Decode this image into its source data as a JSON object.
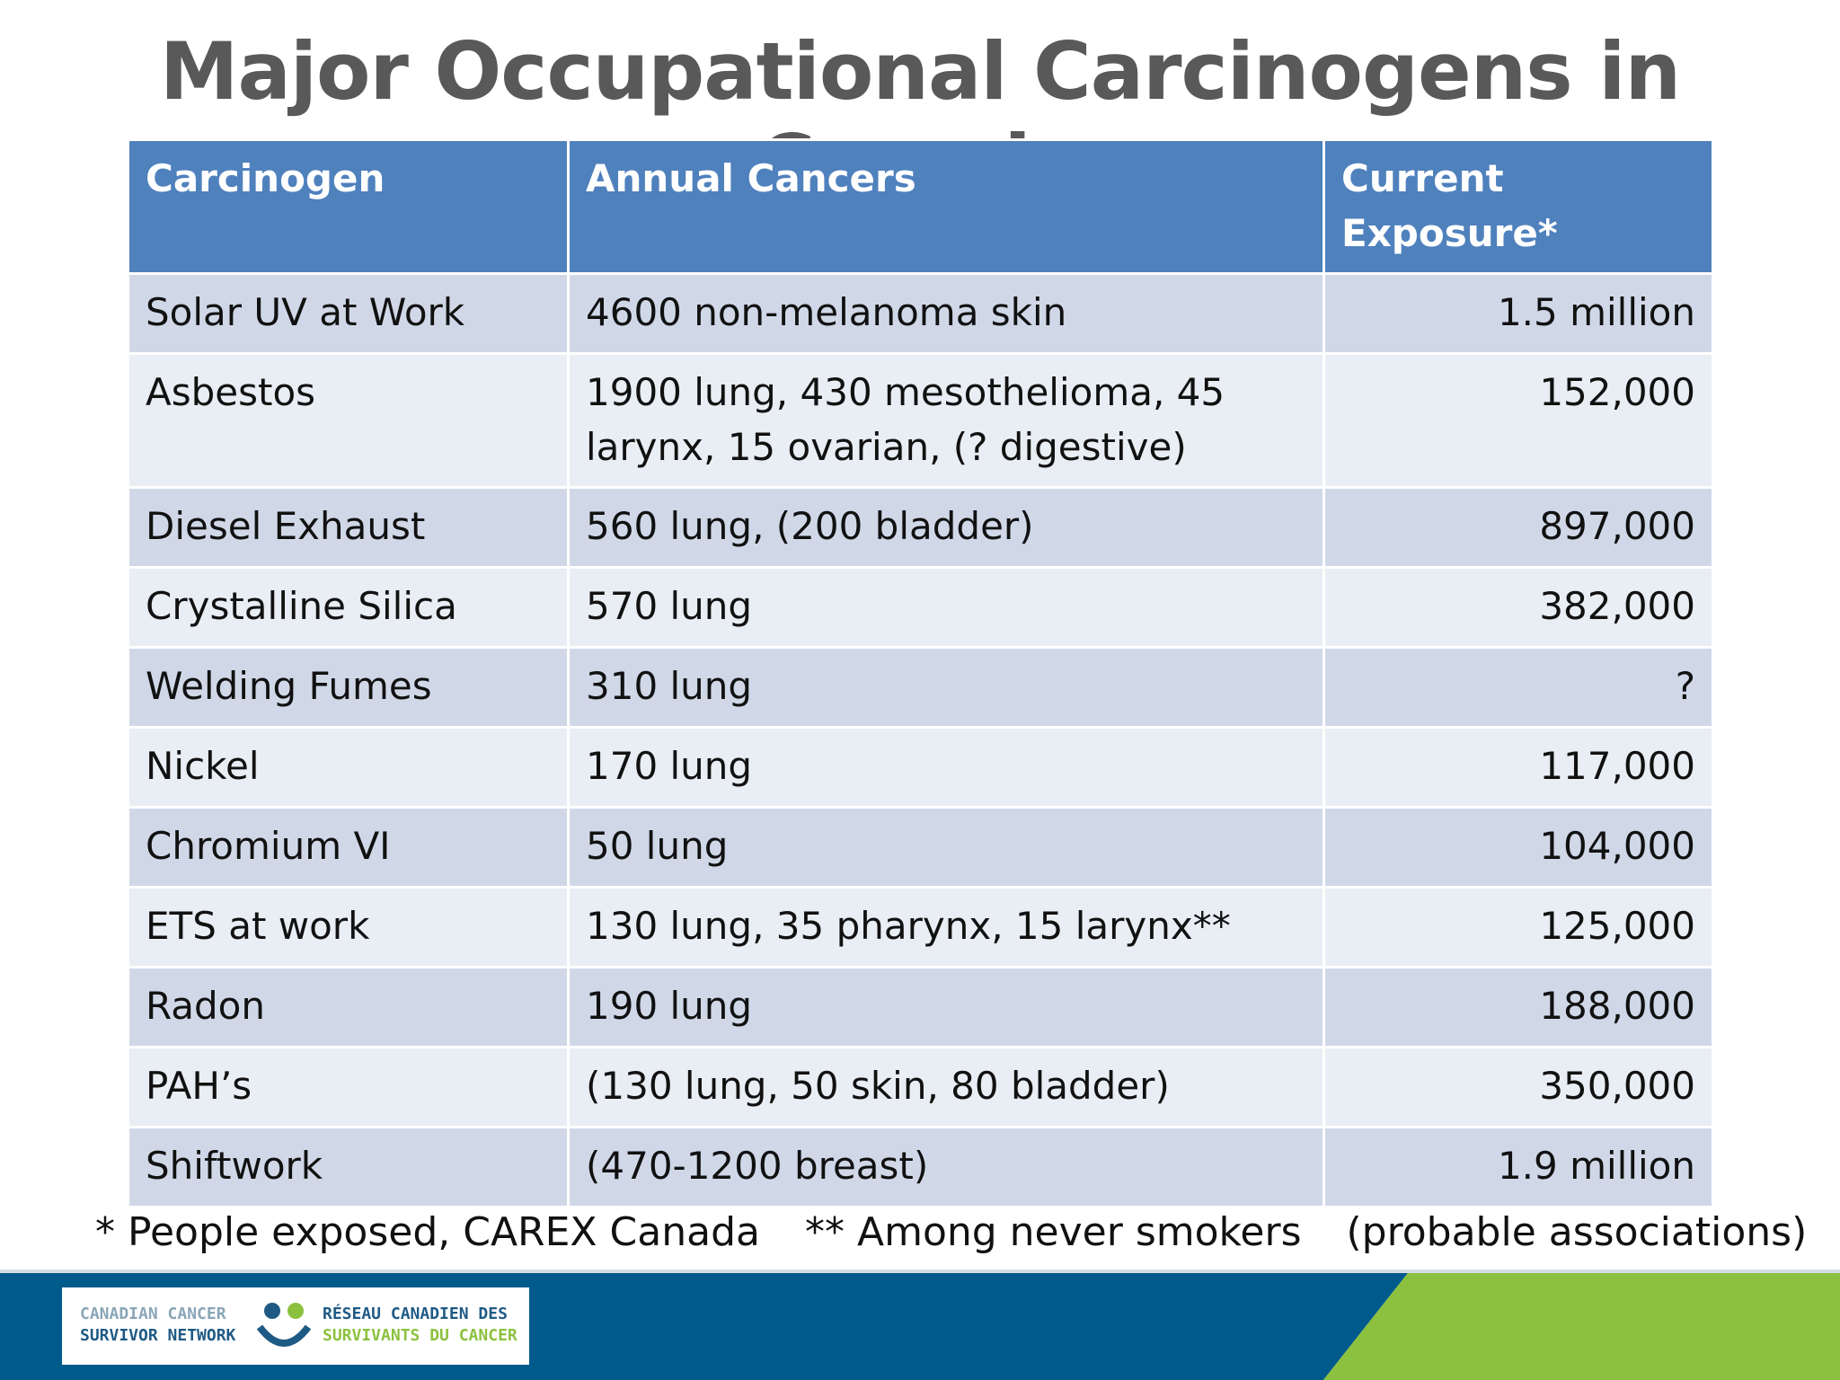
{
  "header": {
    "title": "Major Occupational Carcinogens in Canada"
  },
  "table": {
    "columns": [
      "Carcinogen",
      "Annual Cancers",
      "Current Exposure*"
    ],
    "rows": [
      [
        "Solar UV at Work",
        "4600 non-melanoma skin",
        "1.5 million"
      ],
      [
        "Asbestos",
        "1900 lung, 430 mesothelioma, 45 larynx, 15 ovarian, (? digestive)",
        "152,000"
      ],
      [
        "Diesel Exhaust",
        "560 lung, (200 bladder)",
        "897,000"
      ],
      [
        "Crystalline Silica",
        "570 lung",
        "382,000"
      ],
      [
        "Welding Fumes",
        "310 lung",
        "?"
      ],
      [
        "Nickel",
        "170 lung",
        "117,000"
      ],
      [
        "Chromium VI",
        "50 lung",
        "104,000"
      ],
      [
        "ETS at work",
        "130 lung, 35 pharynx, 15 larynx**",
        "125,000"
      ],
      [
        "Radon",
        "190 lung",
        "188,000"
      ],
      [
        "PAH’s",
        "(130 lung, 50 skin, 80 bladder)",
        "350,000"
      ],
      [
        "Shiftwork",
        "(470-1200 breast)",
        "1.9 million"
      ]
    ]
  },
  "footnotes": [
    "* People exposed, CAREX Canada",
    "** Among never smokers",
    "(probable associations)"
  ],
  "logo": {
    "en": [
      "CANADIAN CANCER",
      "SURVIVOR NETWORK"
    ],
    "fr": [
      "RÉSEAU CANADIEN DES",
      "SURVIVANTS DU CANCER"
    ]
  }
}
